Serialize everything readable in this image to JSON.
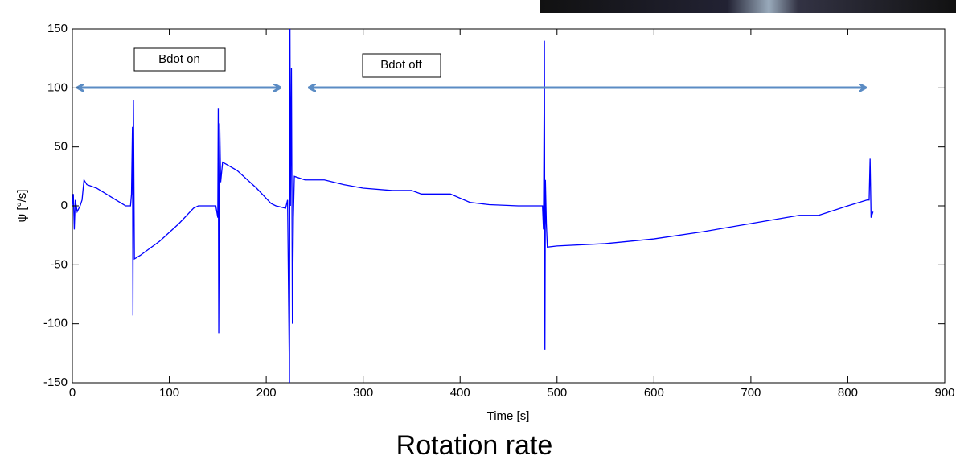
{
  "chart_data": {
    "type": "line",
    "xlabel": "Time [s]",
    "ylabel": "ψ [°/s]",
    "caption": "Rotation rate",
    "annotations": [
      "Bdot on",
      "Bdot off"
    ],
    "color": "#0000ff",
    "xlim": [
      0,
      900
    ],
    "ylim": [
      -150,
      150
    ],
    "xticks": [
      0,
      100,
      200,
      300,
      400,
      500,
      600,
      700,
      800,
      900
    ],
    "yticks": [
      -150,
      -100,
      -50,
      0,
      50,
      100,
      150
    ],
    "x": [
      0,
      1,
      2,
      3,
      5,
      8,
      10,
      12,
      15,
      25,
      45,
      55,
      60,
      61,
      62,
      62.5,
      63,
      64,
      70,
      90,
      110,
      125,
      130,
      148,
      150,
      150.5,
      151,
      152,
      153,
      155,
      170,
      190,
      205,
      210,
      220,
      222,
      224,
      224.5,
      225,
      226,
      227,
      228,
      229,
      240,
      260,
      280,
      300,
      330,
      350,
      360,
      390,
      410,
      430,
      460,
      485,
      486,
      487,
      487.5,
      488,
      489,
      490,
      500,
      550,
      600,
      650,
      700,
      750,
      770,
      800,
      820,
      822,
      823,
      824,
      826
    ],
    "values": [
      0,
      10,
      -20,
      5,
      -5,
      0,
      5,
      22,
      18,
      15,
      5,
      0,
      0,
      10,
      67,
      -93,
      90,
      -45,
      -42,
      -30,
      -15,
      -2,
      0,
      0,
      -10,
      83,
      -108,
      70,
      20,
      37,
      30,
      15,
      2,
      0,
      -2,
      5,
      -150,
      150,
      0,
      117,
      -100,
      -10,
      25,
      22,
      22,
      18,
      15,
      13,
      13,
      10,
      10,
      3,
      1,
      0,
      0,
      -20,
      140,
      -122,
      22,
      -15,
      -35,
      -34,
      -32,
      -28,
      -22,
      -15,
      -8,
      -8,
      0,
      5,
      5,
      40,
      -10,
      -5
    ]
  }
}
